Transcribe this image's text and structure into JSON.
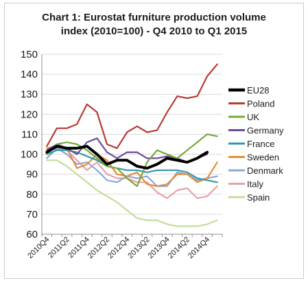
{
  "chart_data": {
    "type": "line",
    "title": "Chart 1: Eurostat furniture production volume",
    "subtitle": "index (2010=100) - Q4 2010 to Q1 2015",
    "xlabel": "",
    "ylabel": "",
    "ylim": [
      60,
      150
    ],
    "yticks": [
      "60",
      "70",
      "80",
      "90",
      "100",
      "110",
      "120",
      "130",
      "140",
      "150"
    ],
    "grid": true,
    "legend": "right",
    "x": [
      "2010Q4",
      "2011Q1",
      "2011Q2",
      "2011Q3",
      "2011Q4",
      "2012Q1",
      "2012Q2",
      "2012Q3",
      "2012Q4",
      "2013Q1",
      "2013Q2",
      "2013Q3",
      "2013Q4",
      "2014Q1",
      "2014Q2",
      "2014Q3",
      "2014Q4",
      "2015Q1"
    ],
    "xtick_labels": [
      "2010Q4",
      "",
      "2011Q2",
      "",
      "2011Q4",
      "",
      "2012Q2",
      "",
      "2012Q4",
      "",
      "2013Q2",
      "",
      "2013Q4",
      "",
      "2014Q2",
      "",
      "2014Q4",
      ""
    ],
    "series": [
      {
        "name": "EU28",
        "color": "#000000",
        "width": 4,
        "values": [
          101,
          104,
          103,
          103,
          104,
          100,
          95,
          97,
          97,
          94,
          93,
          95,
          98,
          97,
          96,
          98,
          101,
          null
        ]
      },
      {
        "name": "Poland",
        "color": "#b83a34",
        "width": 2.2,
        "values": [
          104,
          113,
          113,
          115,
          125,
          121,
          105,
          103,
          111,
          114,
          111,
          112,
          121,
          129,
          128,
          129,
          139,
          145
        ]
      },
      {
        "name": "UK",
        "color": "#78a838",
        "width": 2.2,
        "values": [
          100,
          105,
          106,
          105,
          102,
          98,
          94,
          93,
          88,
          84,
          96,
          102,
          100,
          98,
          102,
          106,
          110,
          109
        ]
      },
      {
        "name": "Germany",
        "color": "#6a4a9c",
        "width": 2.2,
        "values": [
          102,
          105,
          103,
          100,
          106,
          108,
          101,
          98,
          101,
          101,
          98,
          98,
          99,
          98,
          96,
          98,
          100,
          null
        ]
      },
      {
        "name": "France",
        "color": "#2f98a8",
        "width": 2.2,
        "values": [
          100,
          102,
          102,
          101,
          99,
          97,
          94,
          93,
          92,
          92,
          91,
          92,
          92,
          92,
          91,
          88,
          87,
          86
        ]
      },
      {
        "name": "Sweden",
        "color": "#e88a34",
        "width": 2.2,
        "values": [
          103,
          104,
          103,
          93,
          95,
          100,
          97,
          90,
          89,
          91,
          85,
          84,
          85,
          90,
          90,
          86,
          88,
          96
        ]
      },
      {
        "name": "Denmark",
        "color": "#8aa8d8",
        "width": 2.2,
        "values": [
          98,
          103,
          100,
          95,
          96,
          92,
          87,
          86,
          89,
          88,
          89,
          84,
          84,
          91,
          90,
          87,
          88,
          89
        ]
      },
      {
        "name": "Italy",
        "color": "#e8a0a8",
        "width": 2.2,
        "values": [
          98,
          103,
          102,
          97,
          92,
          96,
          90,
          88,
          88,
          86,
          86,
          81,
          78,
          82,
          83,
          78,
          79,
          84
        ]
      },
      {
        "name": "Spain",
        "color": "#c4dc9c",
        "width": 2.2,
        "values": [
          97,
          97,
          94,
          90,
          86,
          82,
          79,
          76,
          72,
          68,
          67,
          67,
          65,
          64,
          64,
          64,
          65,
          67
        ]
      }
    ]
  }
}
